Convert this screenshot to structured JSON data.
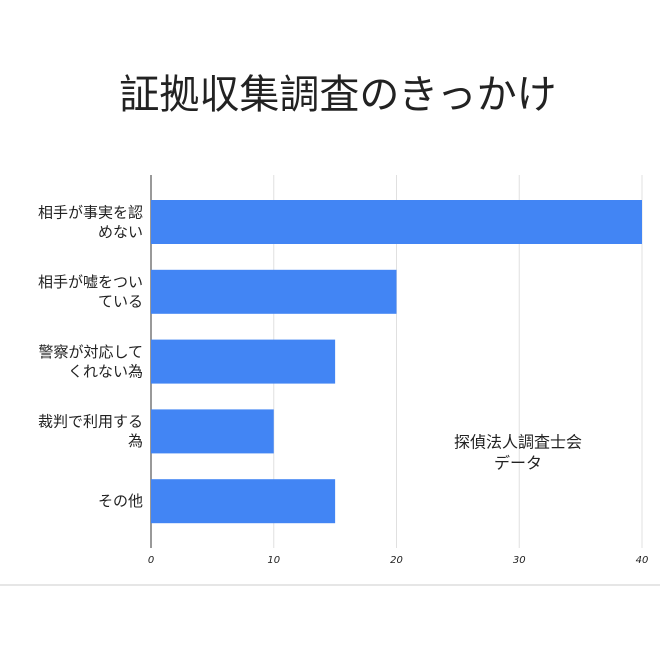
{
  "chart_data": {
    "type": "hbar",
    "title": "証拠収集調査のきっかけ",
    "categories": [
      "相手が事実を認めない",
      "相手が嘘をついている",
      "警察が対応してくれない為",
      "裁判で利用する為",
      "その他"
    ],
    "values": [
      40,
      20,
      15,
      10,
      15
    ],
    "color": "#4285f4",
    "xlim": [
      0,
      40
    ],
    "xticks": [
      0,
      10,
      20,
      30,
      40
    ],
    "grid": true,
    "annotation": "探偵法人調査士会データ"
  }
}
